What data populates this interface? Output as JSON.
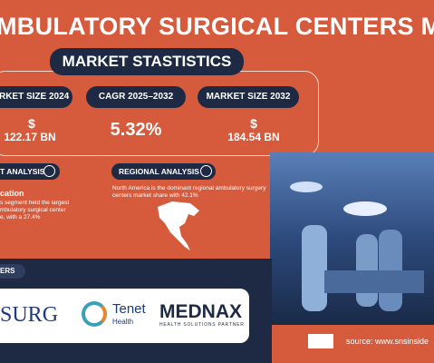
{
  "header": {
    "title": "MBULATORY SURGICAL CENTERS MARK"
  },
  "stats": {
    "heading": "MARKET STASTISTICS",
    "items": [
      {
        "label": "ARKET SIZE 2024",
        "currency": "$",
        "value": "122.17 BN"
      },
      {
        "label": "CAGR 2025–2032",
        "value": "5.32%"
      },
      {
        "label": "MARKET SIZE 2032",
        "currency": "$",
        "value": "184.54 BN"
      }
    ]
  },
  "segment": {
    "heading": "T ANALYSIS",
    "name": "cation",
    "lines": [
      "s segment held the largest",
      "mbulatory surgical center",
      "e, with a 27.4%"
    ]
  },
  "region": {
    "heading": "REGIONAL ANALYSIS",
    "text": "North America is the dominant regional ambulatory surgery centers market share with 42.1%"
  },
  "players": {
    "heading": "ERS",
    "logos": [
      "SURG",
      {
        "name": "Tenet",
        "sub": "Health"
      },
      {
        "name": "MEDNAX",
        "sub": "HEALTH SOLUTIONS PARTNER"
      }
    ]
  },
  "footer": {
    "source": "source: www.snsinside"
  }
}
